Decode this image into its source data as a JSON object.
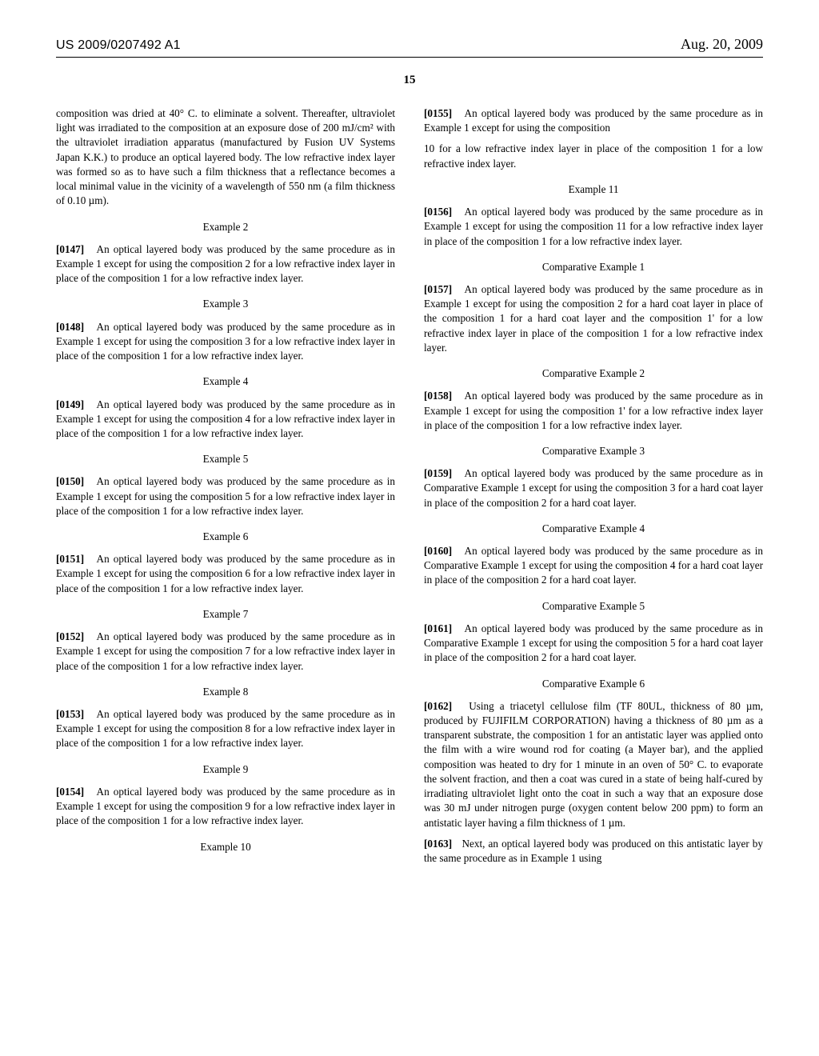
{
  "header": {
    "docnum": "US 2009/0207492 A1",
    "date": "Aug. 20, 2009"
  },
  "pagenum": "15",
  "col1": {
    "intro": "composition was dried at 40° C. to eliminate a solvent. Thereafter, ultraviolet light was irradiated to the composition at an exposure dose of 200 mJ/cm² with the ultraviolet irradiation apparatus (manufactured by Fusion UV Systems Japan K.K.) to produce an optical layered body. The low refractive index layer was formed so as to have such a film thickness that a reflectance becomes a local minimal value in the vicinity of a wavelength of 550 nm (a film thickness of 0.10 µm).",
    "ex2h": "Example 2",
    "ex2n": "[0147]",
    "ex2": "An optical layered body was produced by the same procedure as in Example 1 except for using the composition 2 for a low refractive index layer in place of the composition 1 for a low refractive index layer.",
    "ex3h": "Example 3",
    "ex3n": "[0148]",
    "ex3": "An optical layered body was produced by the same procedure as in Example 1 except for using the composition 3 for a low refractive index layer in place of the composition 1 for a low refractive index layer.",
    "ex4h": "Example 4",
    "ex4n": "[0149]",
    "ex4": "An optical layered body was produced by the same procedure as in Example 1 except for using the composition 4 for a low refractive index layer in place of the composition 1 for a low refractive index layer.",
    "ex5h": "Example 5",
    "ex5n": "[0150]",
    "ex5": "An optical layered body was produced by the same procedure as in Example 1 except for using the composition 5 for a low refractive index layer in place of the composition 1 for a low refractive index layer.",
    "ex6h": "Example 6",
    "ex6n": "[0151]",
    "ex6": "An optical layered body was produced by the same procedure as in Example 1 except for using the composition 6 for a low refractive index layer in place of the composition 1 for a low refractive index layer.",
    "ex7h": "Example 7",
    "ex7n": "[0152]",
    "ex7": "An optical layered body was produced by the same procedure as in Example 1 except for using the composition 7 for a low refractive index layer in place of the composition 1 for a low refractive index layer.",
    "ex8h": "Example 8",
    "ex8n": "[0153]",
    "ex8": "An optical layered body was produced by the same procedure as in Example 1 except for using the composition 8 for a low refractive index layer in place of the composition 1 for a low refractive index layer.",
    "ex9h": "Example 9",
    "ex9n": "[0154]",
    "ex9": "An optical layered body was produced by the same procedure as in Example 1 except for using the composition 9 for a low refractive index layer in place of the composition 1 for a low refractive index layer.",
    "ex10h": "Example 10",
    "ex10n": "[0155]",
    "ex10": "An optical layered body was produced by the same procedure as in Example 1 except for using the composition"
  },
  "col2": {
    "cont": "10 for a low refractive index layer in place of the composition 1 for a low refractive index layer.",
    "ex11h": "Example 11",
    "ex11n": "[0156]",
    "ex11": "An optical layered body was produced by the same procedure as in Example 1 except for using the composition 11 for a low refractive index layer in place of the composition 1 for a low refractive index layer.",
    "c1h": "Comparative Example 1",
    "c1n": "[0157]",
    "c1": "An optical layered body was produced by the same procedure as in Example 1 except for using the composition 2 for a hard coat layer in place of the composition 1 for a hard coat layer and the composition 1' for a low refractive index layer in place of the composition 1 for a low refractive index layer.",
    "c2h": "Comparative Example 2",
    "c2n": "[0158]",
    "c2": "An optical layered body was produced by the same procedure as in Example 1 except for using the composition 1' for a low refractive index layer in place of the composition 1 for a low refractive index layer.",
    "c3h": "Comparative Example 3",
    "c3n": "[0159]",
    "c3": "An optical layered body was produced by the same procedure as in Comparative Example 1 except for using the composition 3 for a hard coat layer in place of the composition 2 for a hard coat layer.",
    "c4h": "Comparative Example 4",
    "c4n": "[0160]",
    "c4": "An optical layered body was produced by the same procedure as in Comparative Example 1 except for using the composition 4 for a hard coat layer in place of the composition 2 for a hard coat layer.",
    "c5h": "Comparative Example 5",
    "c5n": "[0161]",
    "c5": "An optical layered body was produced by the same procedure as in Comparative Example 1 except for using the composition 5 for a hard coat layer in place of the composition 2 for a hard coat layer.",
    "c6h": "Comparative Example 6",
    "c6n": "[0162]",
    "c6": "Using a triacetyl cellulose film (TF 80UL, thickness of 80 µm, produced by FUJIFILM CORPORATION) having a thickness of 80 µm as a transparent substrate, the composition 1 for an antistatic layer was applied onto the film with a wire wound rod for coating (a Mayer bar), and the applied composition was heated to dry for 1 minute in an oven of 50° C. to evaporate the solvent fraction, and then a coat was cured in a state of being half-cured by irradiating ultraviolet light onto the coat in such a way that an exposure dose was 30 mJ under nitrogen purge (oxygen content below 200 ppm) to form an antistatic layer having a film thickness of 1 µm.",
    "c6bn": "[0163]",
    "c6b": "Next, an optical layered body was produced on this antistatic layer by the same procedure as in Example 1 using"
  }
}
